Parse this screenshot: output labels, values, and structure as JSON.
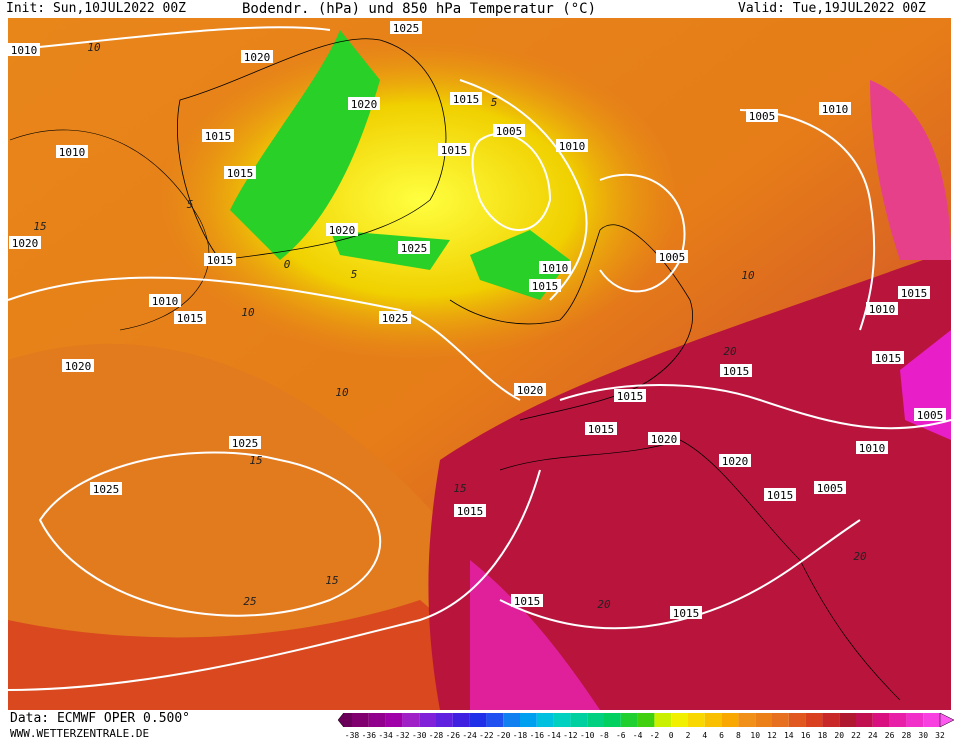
{
  "header": {
    "init": "Init: Sun,10JUL2022 00Z",
    "title": "Bodendr. (hPa) und 850 hPa Temperatur (°C)",
    "valid": "Valid: Tue,19JUL2022 00Z"
  },
  "footer": {
    "data": "Data: ECMWF OPER 0.500°",
    "site": "WWW.WETTERZENTRALE.DE"
  },
  "colorbar": {
    "labels": [
      -38,
      -36,
      -34,
      -32,
      -30,
      -28,
      -26,
      -24,
      -22,
      -20,
      -18,
      -16,
      -14,
      -12,
      -10,
      -8,
      -6,
      -4,
      -2,
      0,
      2,
      4,
      6,
      8,
      10,
      12,
      14,
      16,
      18,
      20,
      22,
      24,
      26,
      28,
      30,
      32
    ]
  },
  "isobar_labels": [
    "1010",
    "1020",
    "1025",
    "1020",
    "1015",
    "1015",
    "1010",
    "1015",
    "1010",
    "1015",
    "1020",
    "1005",
    "1010",
    "1015",
    "1020",
    "1025",
    "1010",
    "1005",
    "1005",
    "1010",
    "1015",
    "1010",
    "1015",
    "1015",
    "1015",
    "1020",
    "1020",
    "1005",
    "1010",
    "1025",
    "1015",
    "1015",
    "1005",
    "1025",
    "1025",
    "1020",
    "1015",
    "1015",
    "1015",
    "1015",
    "1020",
    "1015"
  ],
  "isotherm_labels": [
    "10",
    "5",
    "5",
    "10",
    "15",
    "10",
    "0",
    "5",
    "10",
    "15",
    "15",
    "20",
    "15",
    "20",
    "25",
    "20"
  ]
}
